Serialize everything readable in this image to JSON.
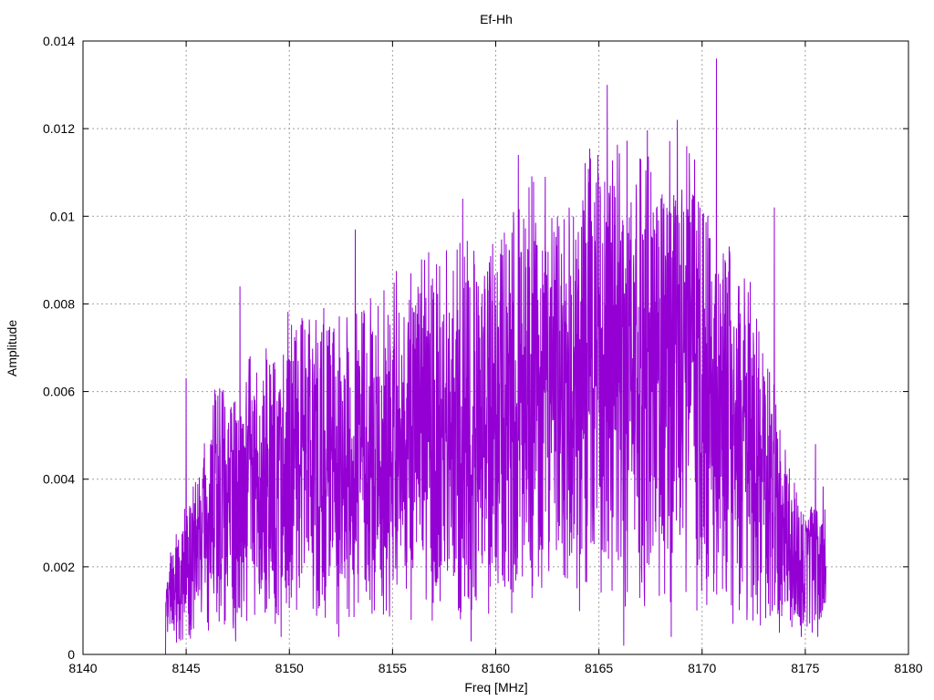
{
  "chart_data": {
    "type": "line",
    "title": "Ef-Hh",
    "xlabel": "Freq [MHz]",
    "ylabel": "Amplitude",
    "xlim": [
      8140,
      8180
    ],
    "ylim": [
      0,
      0.014
    ],
    "x_ticks": [
      "8140",
      "8145",
      "8150",
      "8155",
      "8160",
      "8165",
      "8170",
      "8175",
      "8180"
    ],
    "y_ticks": [
      "0",
      "0.002",
      "0.004",
      "0.006",
      "0.008",
      "0.01",
      "0.012",
      "0.014"
    ],
    "grid": true,
    "legend": "none",
    "series_color": "#9400d3",
    "series": [
      {
        "x_start": 8144.0,
        "x_end": 8176.0,
        "x_step": 0.5,
        "values": [
          0.001,
          0.0016,
          0.002,
          0.0024,
          0.003,
          0.0036,
          0.0032,
          0.0036,
          0.004,
          0.0038,
          0.0042,
          0.004,
          0.0044,
          0.0045,
          0.0042,
          0.0044,
          0.0046,
          0.0044,
          0.0046,
          0.0045,
          0.0048,
          0.0046,
          0.0049,
          0.0048,
          0.005,
          0.0052,
          0.005,
          0.0051,
          0.0053,
          0.0052,
          0.0055,
          0.0054,
          0.0056,
          0.0058,
          0.0057,
          0.006,
          0.0062,
          0.006,
          0.0063,
          0.0064,
          0.0062,
          0.0066,
          0.0064,
          0.0068,
          0.0066,
          0.0067,
          0.0066,
          0.0068,
          0.0067,
          0.0066,
          0.0065,
          0.0064,
          0.006,
          0.0058,
          0.0055,
          0.0052,
          0.005,
          0.0046,
          0.004,
          0.0034,
          0.0028,
          0.0022,
          0.0018,
          0.002,
          0.0022
        ],
        "peak_x": [
          8145.0,
          8147.6,
          8153.2,
          8158.4,
          8161.1,
          8162.4,
          8165.4,
          8168.8,
          8170.7,
          8173.5,
          8175.5
        ],
        "peak_values": [
          0.0063,
          0.0084,
          0.0097,
          0.0104,
          0.0114,
          0.0109,
          0.013,
          0.0122,
          0.0136,
          0.0102,
          0.0048
        ],
        "trough_x": [
          8144.0,
          8147.4,
          8149.6,
          8152.4,
          8158.8,
          8166.2,
          8168.5,
          8171.5,
          8174.8,
          8175.6
        ],
        "trough_values": [
          0.0,
          0.0003,
          0.0004,
          0.0004,
          0.0003,
          0.0002,
          0.0004,
          0.0007,
          0.0004,
          0.0004
        ]
      }
    ]
  }
}
